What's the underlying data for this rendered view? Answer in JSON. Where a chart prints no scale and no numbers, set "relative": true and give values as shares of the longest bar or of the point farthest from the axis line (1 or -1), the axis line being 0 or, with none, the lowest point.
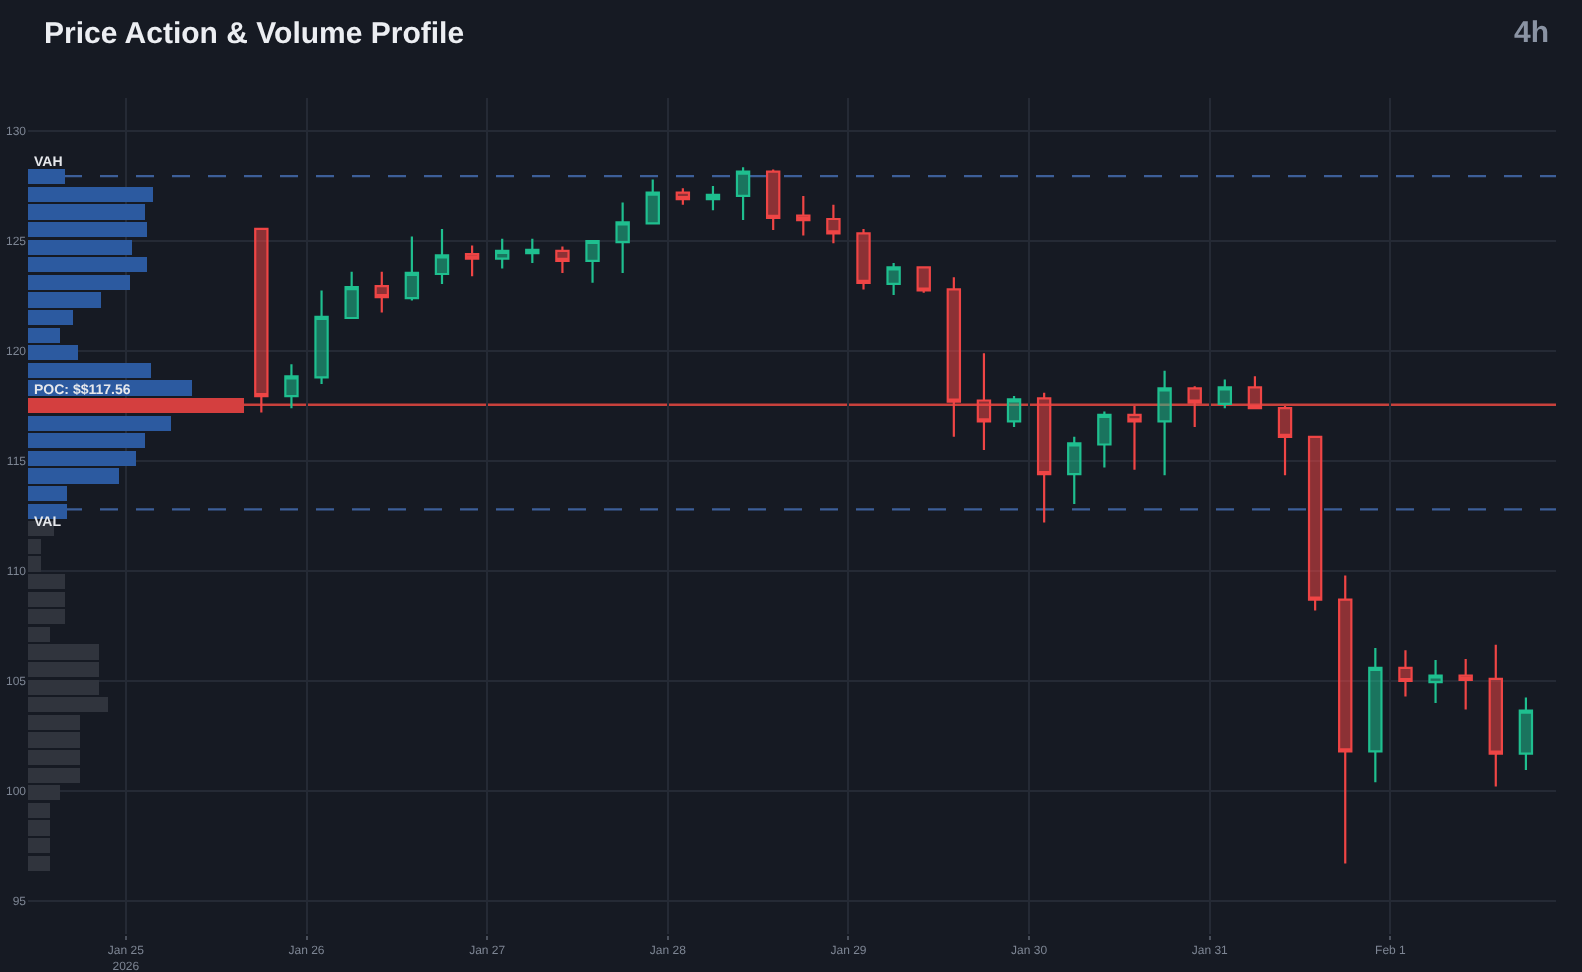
{
  "chart_data": [
    {
      "type": "candlestick",
      "title": "Price Action & Volume Profile",
      "subtitle": "4h",
      "x": [
        "2026-01-25T18:00",
        "2026-01-25T22:00",
        "2026-01-26T02:00",
        "2026-01-26T06:00",
        "2026-01-26T10:00",
        "2026-01-26T14:00",
        "2026-01-26T18:00",
        "2026-01-26T22:00",
        "2026-01-27T02:00",
        "2026-01-27T06:00",
        "2026-01-27T10:00",
        "2026-01-27T14:00",
        "2026-01-27T18:00",
        "2026-01-27T22:00",
        "2026-01-28T02:00",
        "2026-01-28T06:00",
        "2026-01-28T10:00",
        "2026-01-28T14:00",
        "2026-01-28T18:00",
        "2026-01-28T22:00",
        "2026-01-29T02:00",
        "2026-01-29T06:00",
        "2026-01-29T10:00",
        "2026-01-29T14:00",
        "2026-01-29T18:00",
        "2026-01-29T22:00",
        "2026-01-30T02:00",
        "2026-01-30T06:00",
        "2026-01-30T10:00",
        "2026-01-30T14:00",
        "2026-01-30T18:00",
        "2026-01-30T22:00",
        "2026-01-31T02:00",
        "2026-01-31T06:00",
        "2026-01-31T10:00",
        "2026-01-31T14:00",
        "2026-01-31T18:00",
        "2026-01-31T22:00",
        "2026-02-01T02:00",
        "2026-02-01T06:00",
        "2026-02-01T10:00",
        "2026-02-01T14:00",
        "2026-02-01T18:00"
      ],
      "ohlc": [
        [
          125.55,
          125.6,
          117.2,
          117.95
        ],
        [
          117.95,
          119.4,
          117.4,
          118.85
        ],
        [
          118.8,
          122.75,
          118.5,
          121.55
        ],
        [
          121.5,
          123.6,
          121.5,
          122.9
        ],
        [
          122.95,
          123.6,
          121.75,
          122.45
        ],
        [
          122.4,
          125.2,
          122.3,
          123.55
        ],
        [
          123.5,
          125.55,
          123.05,
          124.35
        ],
        [
          124.4,
          124.8,
          123.4,
          124.2
        ],
        [
          124.2,
          125.1,
          123.75,
          124.55
        ],
        [
          124.45,
          125.1,
          124.0,
          124.6
        ],
        [
          124.55,
          124.75,
          123.55,
          124.1
        ],
        [
          124.1,
          125.0,
          123.1,
          125.0
        ],
        [
          124.95,
          126.75,
          123.55,
          125.85
        ],
        [
          125.8,
          127.8,
          125.75,
          127.2
        ],
        [
          127.2,
          127.4,
          126.65,
          126.9
        ],
        [
          126.9,
          127.5,
          126.4,
          127.1
        ],
        [
          127.05,
          128.35,
          125.95,
          128.15
        ],
        [
          128.15,
          128.25,
          125.5,
          126.05
        ],
        [
          126.15,
          127.05,
          125.25,
          125.95
        ],
        [
          126.0,
          126.65,
          124.9,
          125.35
        ],
        [
          125.35,
          125.55,
          122.8,
          123.1
        ],
        [
          123.05,
          124.0,
          122.55,
          123.8
        ],
        [
          123.8,
          123.85,
          122.65,
          122.75
        ],
        [
          122.8,
          123.35,
          116.1,
          117.7
        ],
        [
          117.75,
          119.9,
          115.5,
          116.8
        ],
        [
          116.8,
          117.95,
          116.55,
          117.8
        ],
        [
          117.85,
          118.1,
          112.2,
          114.4
        ],
        [
          114.4,
          116.1,
          113.05,
          115.8
        ],
        [
          115.75,
          117.25,
          114.7,
          117.1
        ],
        [
          117.1,
          117.5,
          114.6,
          116.8
        ],
        [
          116.8,
          119.1,
          114.35,
          118.3
        ],
        [
          118.3,
          118.4,
          116.55,
          117.65
        ],
        [
          117.6,
          118.7,
          117.4,
          118.35
        ],
        [
          118.35,
          118.85,
          117.35,
          117.4
        ],
        [
          117.4,
          117.5,
          114.35,
          116.1
        ],
        [
          116.1,
          116.15,
          108.2,
          108.7
        ],
        [
          108.7,
          109.8,
          96.7,
          101.8
        ],
        [
          101.8,
          106.5,
          100.4,
          105.6
        ],
        [
          105.6,
          106.4,
          104.3,
          105.0
        ],
        [
          104.95,
          105.95,
          104.0,
          105.25
        ],
        [
          105.25,
          106.0,
          103.7,
          105.05
        ],
        [
          105.1,
          106.65,
          100.2,
          101.7
        ],
        [
          101.7,
          104.25,
          100.95,
          103.65
        ]
      ],
      "colors": [
        "#ef4545",
        "#1fbf8f",
        "#1fbf8f",
        "#1fbf8f",
        "#ef4545",
        "#1fbf8f",
        "#1fbf8f",
        "#ef4545",
        "#1fbf8f",
        "#1fbf8f",
        "#ef4545",
        "#1fbf8f",
        "#1fbf8f",
        "#1fbf8f",
        "#ef4545",
        "#1fbf8f",
        "#1fbf8f",
        "#ef4545",
        "#ef4545",
        "#ef4545",
        "#ef4545",
        "#1fbf8f",
        "#ef4545",
        "#ef4545",
        "#ef4545",
        "#1fbf8f",
        "#ef4545",
        "#1fbf8f",
        "#1fbf8f",
        "#ef4545",
        "#1fbf8f",
        "#ef4545",
        "#1fbf8f",
        "#ef4545",
        "#ef4545",
        "#ef4545",
        "#ef4545",
        "#1fbf8f",
        "#ef4545",
        "#1fbf8f",
        "#ef4545",
        "#ef4545",
        "#1fbf8f"
      ],
      "xlim": [
        "2026-01-24T11:00",
        "2026-02-01T22:00"
      ],
      "ylim": [
        93.5,
        131.5
      ],
      "xticks": [
        {
          "value": "2026-01-25",
          "label": "Jan 25\n2026"
        },
        {
          "value": "2026-01-26",
          "label": "Jan 26"
        },
        {
          "value": "2026-01-27",
          "label": "Jan 27"
        },
        {
          "value": "2026-01-28",
          "label": "Jan 28"
        },
        {
          "value": "2026-01-29",
          "label": "Jan 29"
        },
        {
          "value": "2026-01-30",
          "label": "Jan 30"
        },
        {
          "value": "2026-01-31",
          "label": "Jan 31"
        },
        {
          "value": "2026-02-01",
          "label": "Feb 1"
        }
      ],
      "yticks": [
        95,
        100,
        105,
        110,
        115,
        120,
        125,
        130
      ],
      "grid": true,
      "ref_lines": [
        {
          "axis": "y",
          "value": 127.95,
          "label": "VAH",
          "color": "#3d5f99",
          "line_style": "dashed"
        },
        {
          "axis": "y",
          "value": 112.8,
          "label": "VAL",
          "color": "#3d5f99",
          "line_style": "dashed"
        },
        {
          "axis": "y",
          "value": 117.56,
          "label": "POC: $$117.56",
          "color": "#c8413c",
          "line_style": "solid"
        }
      ]
    },
    {
      "type": "bar",
      "orientation": "horizontal",
      "relative": true,
      "categories": [
        null,
        null,
        null,
        null,
        null,
        null,
        null,
        null,
        null,
        null,
        null,
        null,
        null,
        null,
        null,
        null,
        null,
        null,
        null,
        null,
        null,
        null,
        null,
        null,
        null,
        null,
        null,
        null,
        null,
        null,
        null,
        null,
        null,
        null,
        null,
        null,
        null,
        null,
        null,
        null
      ],
      "values": [
        0.17,
        0.58,
        0.54,
        0.55,
        0.48,
        0.55,
        0.47,
        0.34,
        0.21,
        0.15,
        0.23,
        0.57,
        0.76,
        1.0,
        0.66,
        0.54,
        0.5,
        0.42,
        0.18,
        0.18,
        0.12,
        0.06,
        0.06,
        0.17,
        0.17,
        0.17,
        0.1,
        0.33,
        0.33,
        0.33,
        0.37,
        0.24,
        0.24,
        0.24,
        0.24,
        0.15,
        0.1,
        0.1,
        0.1,
        0.1
      ],
      "colors": [
        "#2c5aa0",
        "#2c5aa0",
        "#2c5aa0",
        "#2c5aa0",
        "#2c5aa0",
        "#2c5aa0",
        "#2c5aa0",
        "#2c5aa0",
        "#2c5aa0",
        "#2c5aa0",
        "#2c5aa0",
        "#2c5aa0",
        "#2c5aa0",
        "#d43f3f",
        "#2c5aa0",
        "#2c5aa0",
        "#2c5aa0",
        "#2c5aa0",
        "#2c5aa0",
        "#2c5aa0",
        "#30343d",
        "#30343d",
        "#30343d",
        "#30343d",
        "#30343d",
        "#30343d",
        "#30343d",
        "#30343d",
        "#30343d",
        "#30343d",
        "#30343d",
        "#30343d",
        "#30343d",
        "#30343d",
        "#30343d",
        "#30343d",
        "#30343d",
        "#30343d",
        "#30343d",
        "#30343d"
      ]
    }
  ]
}
